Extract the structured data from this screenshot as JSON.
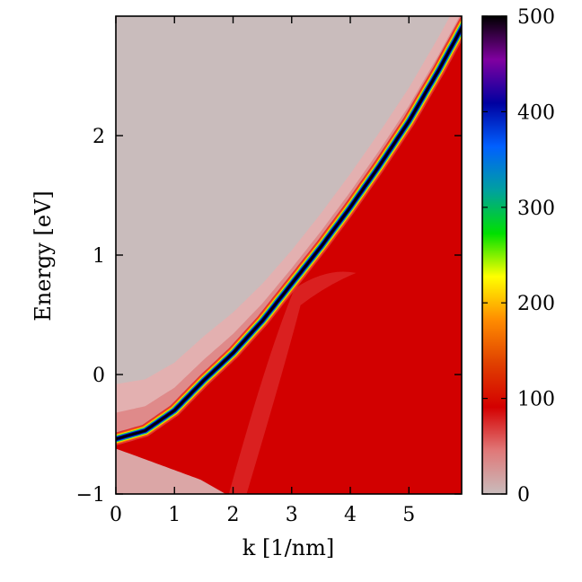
{
  "chart_data": {
    "type": "heatmap",
    "title": "",
    "xlabel": "k [1/nm]",
    "ylabel": "Energy [eV]",
    "xlim": [
      0,
      5.9
    ],
    "ylim": [
      -1,
      3
    ],
    "xticks": [
      0,
      1,
      2,
      3,
      4,
      5
    ],
    "xtick_labels": [
      "0",
      "1",
      "2",
      "3",
      "4",
      "5"
    ],
    "yticks": [
      -1,
      0,
      1,
      2
    ],
    "ytick_labels": [
      "−1",
      "0",
      "1",
      "2"
    ],
    "grid": false,
    "dispersion_peak": {
      "k": [
        0,
        0.5,
        1,
        1.5,
        2,
        2.5,
        3,
        3.5,
        4,
        4.5,
        5,
        5.5,
        5.9
      ],
      "energy": [
        -0.54,
        -0.47,
        -0.3,
        -0.05,
        0.18,
        0.45,
        0.76,
        1.07,
        1.4,
        1.75,
        2.12,
        2.54,
        2.9
      ]
    },
    "colorbar": {
      "range": [
        0,
        500
      ],
      "ticks": [
        0,
        100,
        200,
        300,
        400,
        500
      ],
      "tick_labels": [
        "0",
        "100",
        "200",
        "300",
        "400",
        "500"
      ],
      "colormap": [
        "#c9bcbc",
        "#e07878",
        "#d40000",
        "#e04000",
        "#ff8c00",
        "#ffff00",
        "#00e000",
        "#00a0a0",
        "#0060ff",
        "#0000a0",
        "#8000a0",
        "#000000"
      ],
      "placement": "right"
    }
  }
}
